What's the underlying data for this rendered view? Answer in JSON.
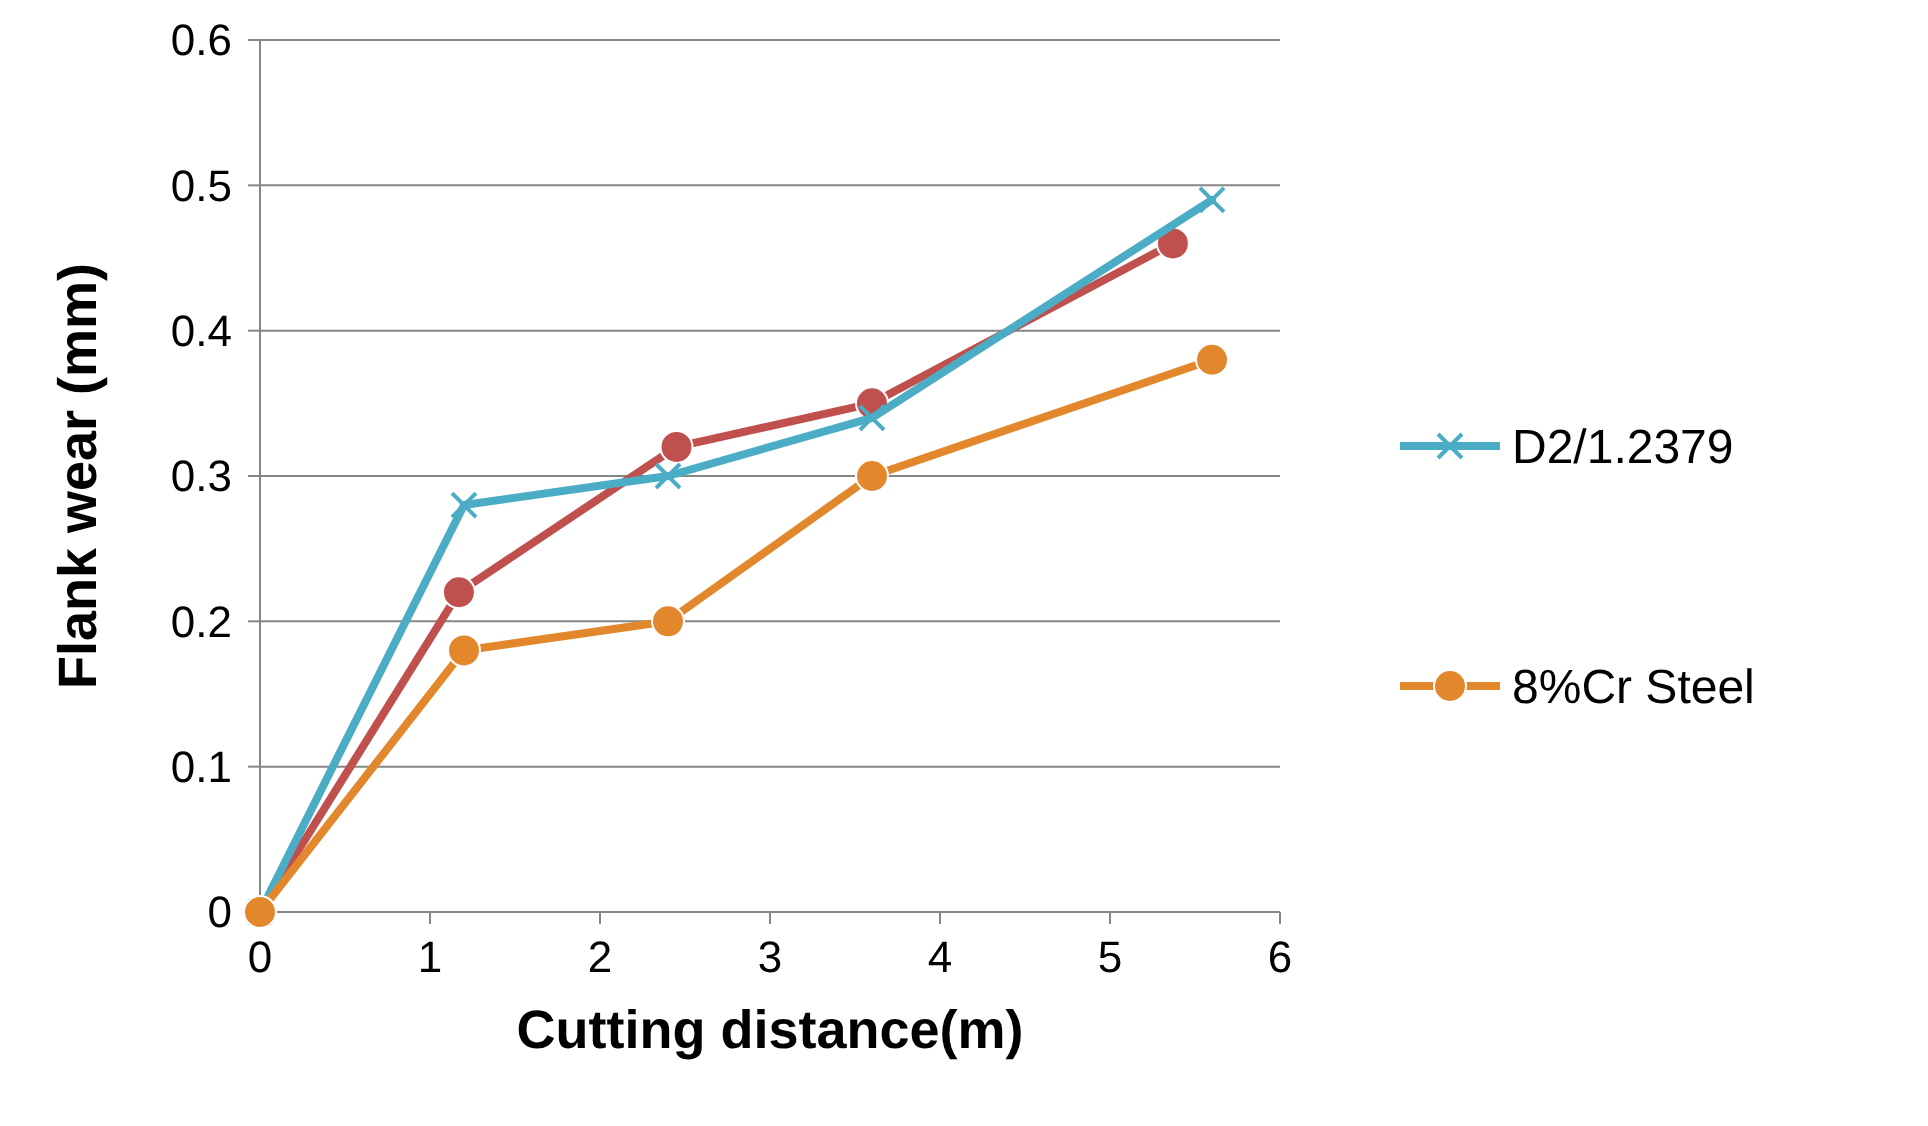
{
  "chart_data": {
    "type": "line",
    "xlabel": "Cutting distance(m)",
    "ylabel": "Flank wear (mm)",
    "xlim": [
      0,
      6
    ],
    "xticks": [
      0,
      1,
      2,
      3,
      4,
      5,
      6
    ],
    "ylim": [
      0,
      0.6
    ],
    "yticks": [
      0,
      0.1,
      0.2,
      0.3,
      0.4,
      0.5,
      0.6
    ],
    "grid": "y",
    "legend": "right",
    "line_style": "solid",
    "series": [
      {
        "color": "#c0504d",
        "marker": "circle",
        "x": [
          0,
          1.17,
          2.45,
          3.6,
          5.37
        ],
        "values": [
          0,
          0.22,
          0.32,
          0.35,
          0.46
        ]
      },
      {
        "name": "D2/1.2379",
        "color": "#4bacc6",
        "marker": "cross",
        "x": [
          0,
          1.2,
          2.4,
          3.6,
          5.6
        ],
        "values": [
          0,
          0.28,
          0.3,
          0.34,
          0.49
        ]
      },
      {
        "name": "8%Cr Steel",
        "color": "#e3872d",
        "marker": "circle",
        "x": [
          0,
          1.2,
          2.4,
          3.6,
          5.6
        ],
        "values": [
          0,
          0.18,
          0.2,
          0.3,
          0.38
        ]
      }
    ]
  }
}
